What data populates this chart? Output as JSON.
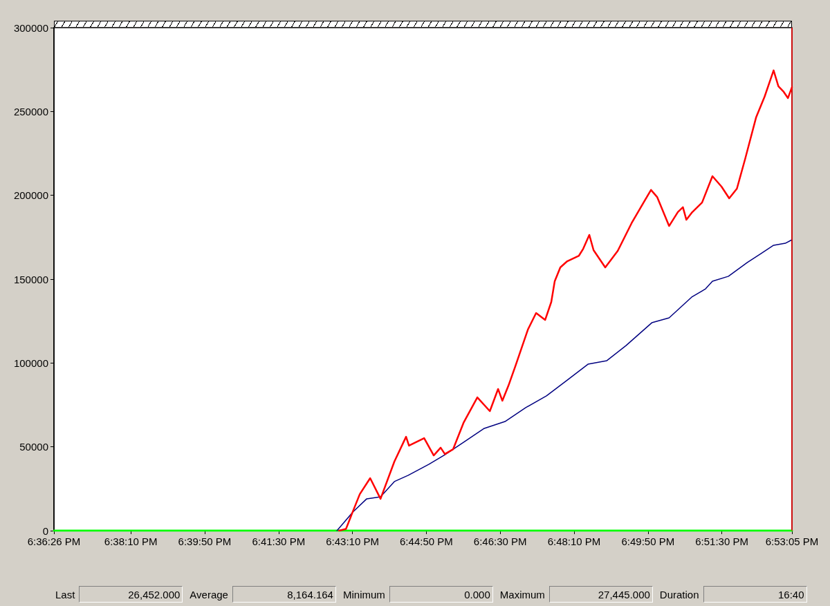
{
  "chart_data": {
    "type": "line",
    "xlim": [
      18.6072,
      18.8847
    ],
    "xticks": [
      {
        "value": 18.6072,
        "label": "6:36:26 PM"
      },
      {
        "value": 18.636111,
        "label": "6:38:10 PM"
      },
      {
        "value": 18.663889,
        "label": "6:39:50 PM"
      },
      {
        "value": 18.691667,
        "label": "6:41:30 PM"
      },
      {
        "value": 18.719444,
        "label": "6:43:10 PM"
      },
      {
        "value": 18.747222,
        "label": "6:44:50 PM"
      },
      {
        "value": 18.775,
        "label": "6:46:30 PM"
      },
      {
        "value": 18.802778,
        "label": "6:48:10 PM"
      },
      {
        "value": 18.830556,
        "label": "6:49:50 PM"
      },
      {
        "value": 18.858333,
        "label": "6:51:30 PM"
      },
      {
        "value": 18.8847,
        "label": "6:53:05 PM"
      }
    ],
    "ylim": [
      0,
      300000
    ],
    "yticks": [
      0,
      50000,
      100000,
      150000,
      200000,
      250000,
      300000
    ],
    "series": [
      {
        "color": "#00ff00",
        "x": [
          18.6072,
          18.8847
        ],
        "values": [
          0,
          0
        ]
      },
      {
        "color": "#000080",
        "x": [
          18.7136,
          18.7196,
          18.7248,
          18.73,
          18.7352,
          18.7404,
          18.7482,
          18.7542,
          18.7612,
          18.769,
          18.7768,
          18.7846,
          18.7924,
          18.8002,
          18.808,
          18.8151,
          18.8223,
          18.832,
          18.8385,
          18.847,
          18.8522,
          18.8548,
          18.8608,
          18.8679,
          18.8731,
          18.8778,
          18.8822,
          18.8847
        ],
        "values": [
          0,
          11100,
          19000,
          20200,
          29300,
          33000,
          39600,
          45300,
          52700,
          61000,
          65100,
          73400,
          80400,
          89800,
          99300,
          101400,
          110400,
          124000,
          126900,
          139300,
          144200,
          148800,
          151700,
          159900,
          165300,
          170200,
          171400,
          173500
        ]
      },
      {
        "color": "#ff0000",
        "x": [
          18.7144,
          18.717,
          18.7196,
          18.7222,
          18.7261,
          18.73,
          18.7352,
          18.7396,
          18.7407,
          18.7464,
          18.75,
          18.7526,
          18.7542,
          18.7573,
          18.7612,
          18.7664,
          18.7711,
          18.7742,
          18.7758,
          18.7781,
          18.7807,
          18.7854,
          18.7885,
          18.7919,
          18.7942,
          18.7955,
          18.7976,
          18.8002,
          18.8046,
          18.8062,
          18.8085,
          18.8101,
          18.8145,
          18.8192,
          18.8244,
          18.8294,
          18.8317,
          18.834,
          18.8385,
          18.8418,
          18.8437,
          18.845,
          18.847,
          18.8509,
          18.8548,
          18.8582,
          18.8611,
          18.864,
          18.8671,
          18.8712,
          18.8744,
          18.8778,
          18.8796,
          18.8816,
          18.8832,
          18.8847
        ],
        "values": [
          0,
          1000,
          11500,
          21800,
          31300,
          19000,
          41200,
          56000,
          50700,
          55200,
          44900,
          49500,
          45700,
          48600,
          64300,
          79500,
          71300,
          84500,
          77500,
          86500,
          98100,
          119900,
          129800,
          125700,
          136400,
          148800,
          157000,
          160700,
          164000,
          168100,
          176400,
          167300,
          157000,
          166900,
          183400,
          197000,
          203200,
          199000,
          181700,
          190000,
          192900,
          185400,
          189600,
          195700,
          211400,
          205200,
          198200,
          204000,
          221700,
          246400,
          258800,
          274500,
          265000,
          261700,
          258000,
          264500
        ]
      }
    ],
    "ref_lines": [
      {
        "axis": "x",
        "value": 18.8847,
        "color": "#ff0000"
      }
    ],
    "annotations": [
      "Last",
      "26,452.000",
      "Average",
      "8,164.164",
      "Minimum",
      "0.000",
      "Maximum",
      "27,445.000",
      "Duration",
      "16:40"
    ]
  }
}
